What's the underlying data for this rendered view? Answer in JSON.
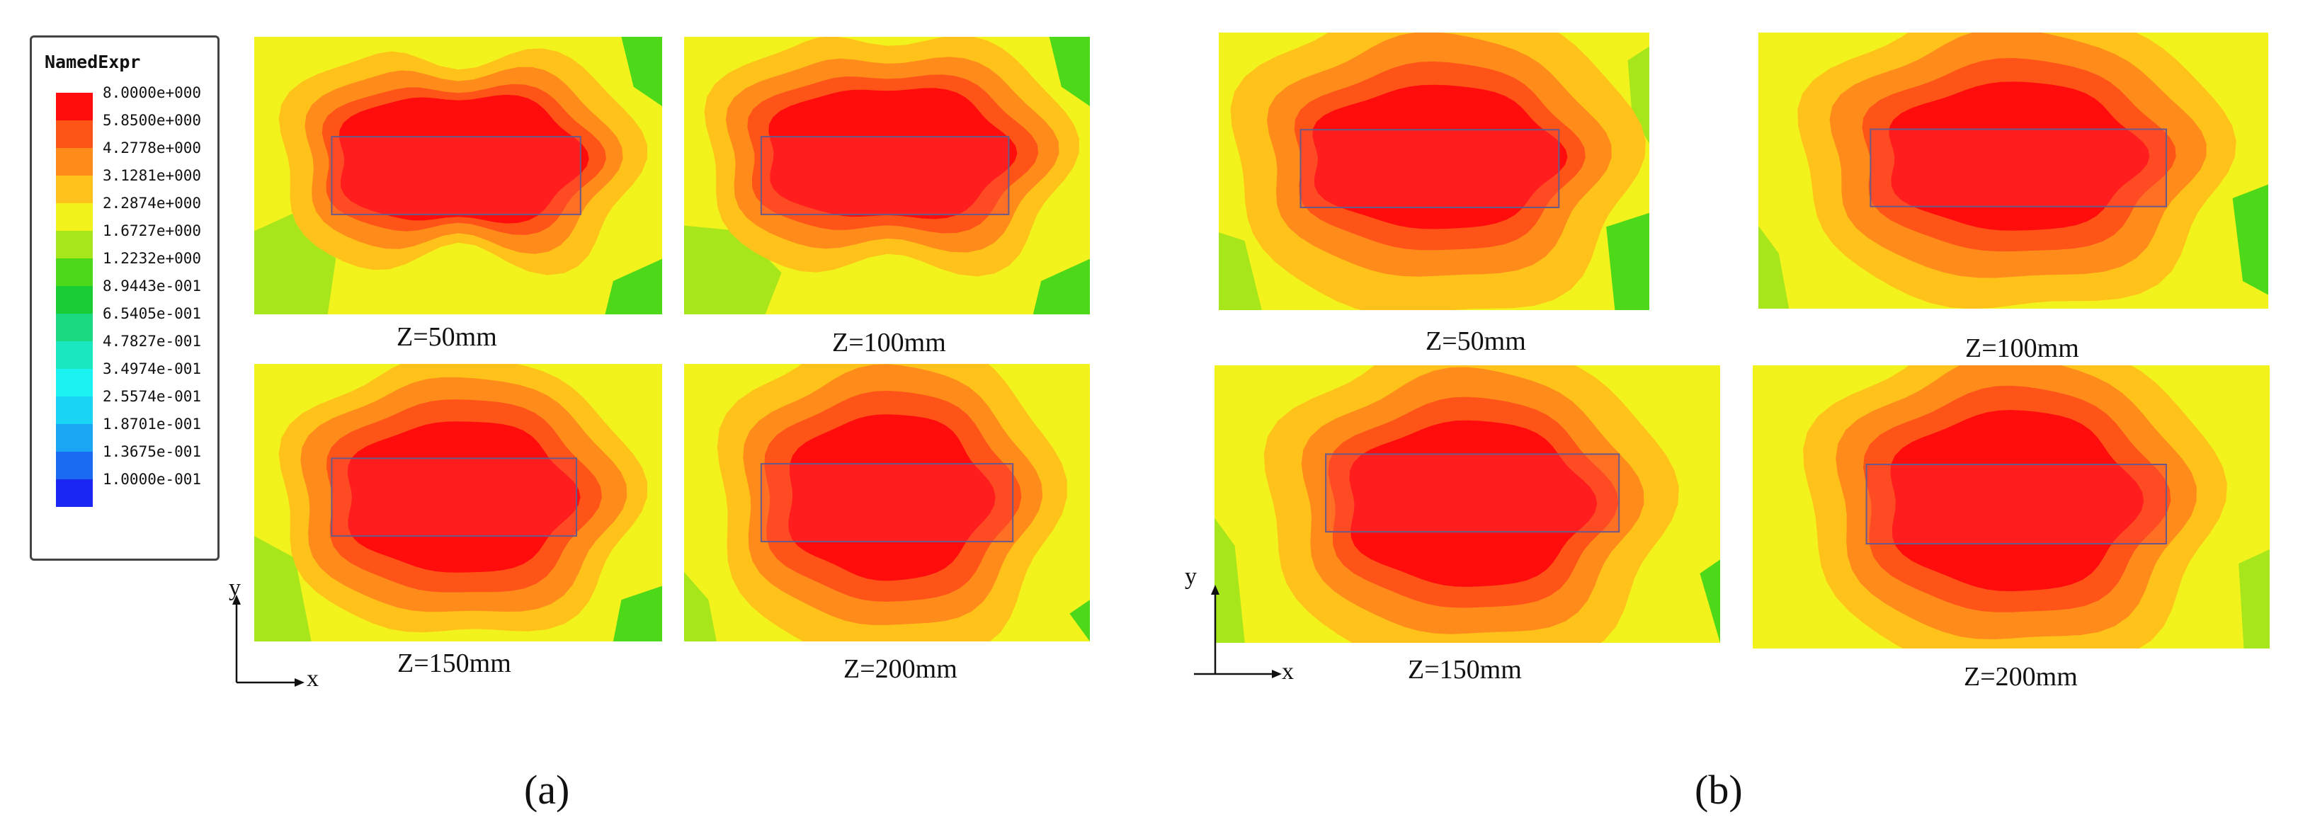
{
  "legend": {
    "title": "NamedExpr",
    "entries": [
      {
        "label": "8.0000e+000",
        "color": "#ff0d0d"
      },
      {
        "label": "5.8500e+000",
        "color": "#ff5418"
      },
      {
        "label": "4.2778e+000",
        "color": "#ff8c1a"
      },
      {
        "label": "3.1281e+000",
        "color": "#ffc21a"
      },
      {
        "label": "2.2874e+000",
        "color": "#f2f21c"
      },
      {
        "label": "1.6727e+000",
        "color": "#a6e61a"
      },
      {
        "label": "1.2232e+000",
        "color": "#4dd91a"
      },
      {
        "label": "8.9443e-001",
        "color": "#1acc33"
      },
      {
        "label": "6.5405e-001",
        "color": "#1ad980"
      },
      {
        "label": "4.7827e-001",
        "color": "#1ae6bf"
      },
      {
        "label": "3.4974e-001",
        "color": "#1af2f2"
      },
      {
        "label": "2.5574e-001",
        "color": "#1ad4f5"
      },
      {
        "label": "1.8701e-001",
        "color": "#1aa6f2"
      },
      {
        "label": "1.3675e-001",
        "color": "#1a6bf2"
      },
      {
        "label": "1.0000e-001",
        "color": "#1a26f2"
      }
    ]
  },
  "figures": {
    "a": {
      "label": "(a)",
      "axes": {
        "x": "x",
        "y": "y"
      },
      "panels": [
        {
          "caption": "Z=50mm"
        },
        {
          "caption": "Z=100mm"
        },
        {
          "caption": "Z=150mm"
        },
        {
          "caption": "Z=200mm"
        }
      ]
    },
    "b": {
      "label": "(b)",
      "axes": {
        "x": "x",
        "y": "y"
      },
      "panels": [
        {
          "caption": "Z=50mm"
        },
        {
          "caption": "Z=100mm"
        },
        {
          "caption": "Z=150mm"
        },
        {
          "caption": "Z=200mm"
        }
      ]
    }
  }
}
